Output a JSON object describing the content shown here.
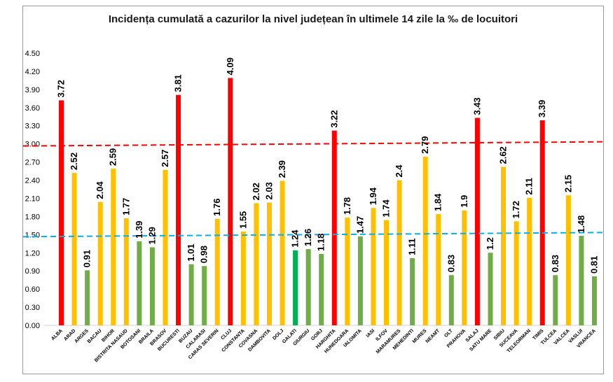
{
  "chart_data": {
    "type": "bar",
    "title": "Incidența cumulată a cazurilor la nivel județean în ultimele 14 zile la ‰ de locuitori",
    "xlabel": "",
    "ylabel": "",
    "ylim": [
      0,
      4.5
    ],
    "yticks": [
      "0.00",
      "0.30",
      "0.60",
      "0.90",
      "1.20",
      "1.50",
      "1.80",
      "2.10",
      "2.40",
      "2.70",
      "3.00",
      "3.30",
      "3.60",
      "3.90",
      "4.20",
      "4.50"
    ],
    "categories": [
      "ALBA",
      "ARAD",
      "ARGES",
      "BACAU",
      "BIHOR",
      "BISTRITA NASAUD",
      "BOTOSANI",
      "BRAILA",
      "BRASOV",
      "BUCURESTI",
      "BUZAU",
      "CALARASI",
      "CARAS SEVERIN",
      "CLUJ",
      "CONSTANTA",
      "COVASNA",
      "DAMBOVITA",
      "DOLJ",
      "GALATI",
      "GIURGIU",
      "GORJ",
      "HARGHITA",
      "HUNEDOARA",
      "IALOMITA",
      "IASI",
      "ILFOV",
      "MARAMURES",
      "MEHEDINTI",
      "MURES",
      "NEAMT",
      "OLT",
      "PRAHOVA",
      "SALAJ",
      "SATU MARE",
      "SIBIU",
      "SUCEAVA",
      "TELEORMAN",
      "TIMIS",
      "TULCEA",
      "VALCEA",
      "VASLUI",
      "VRANCEA"
    ],
    "values": [
      3.72,
      2.52,
      0.91,
      2.04,
      2.59,
      1.77,
      1.39,
      1.29,
      2.57,
      3.81,
      1.01,
      0.98,
      1.76,
      4.09,
      1.55,
      2.02,
      2.03,
      2.39,
      1.24,
      1.26,
      1.18,
      3.22,
      1.78,
      1.47,
      1.94,
      1.74,
      2.4,
      1.11,
      2.79,
      1.84,
      0.83,
      1.9,
      3.43,
      1.2,
      2.62,
      1.72,
      2.11,
      3.39,
      0.83,
      2.15,
      1.48,
      0.81
    ],
    "data_labels": [
      "3.72",
      "2.52",
      "0.91",
      "2.04",
      "2.59",
      "1.77",
      "1.39",
      "1.29",
      "2.57",
      "3.81",
      "1.01",
      "0.98",
      "1.76",
      "4.09",
      "1.55",
      "2.02",
      "2.03",
      "2.39",
      "1.24",
      "1.26",
      "1.18",
      "3.22",
      "1.78",
      "1.47",
      "1.94",
      "1.74",
      "2.4",
      "1.11",
      "2.79",
      "1.84",
      "0.83",
      "1.9",
      "3.43",
      "1.2",
      "2.62",
      "1.72",
      "2.11",
      "3.39",
      "0.83",
      "2.15",
      "1.48",
      "0.81"
    ],
    "colors": [
      "red",
      "yellow",
      "green",
      "yellow",
      "yellow",
      "yellow",
      "green",
      "green",
      "yellow",
      "red",
      "green",
      "green",
      "yellow",
      "red",
      "yellow",
      "yellow",
      "yellow",
      "yellow",
      "brightgreen",
      "green",
      "green",
      "red",
      "yellow",
      "green",
      "yellow",
      "yellow",
      "yellow",
      "green",
      "yellow",
      "yellow",
      "green",
      "yellow",
      "red",
      "green",
      "yellow",
      "yellow",
      "yellow",
      "red",
      "green",
      "yellow",
      "green",
      "green"
    ],
    "palette": {
      "red": "#ff0000",
      "yellow": "#ffc000",
      "green": "#70ad47",
      "brightgreen": "#00b050"
    },
    "reference_lines": [
      {
        "value": 3.0,
        "color": "#ff0000",
        "style": "dashed"
      },
      {
        "value": 1.5,
        "color": "#00b0f0",
        "style": "dashed"
      }
    ],
    "grid": false,
    "legend": "none"
  }
}
